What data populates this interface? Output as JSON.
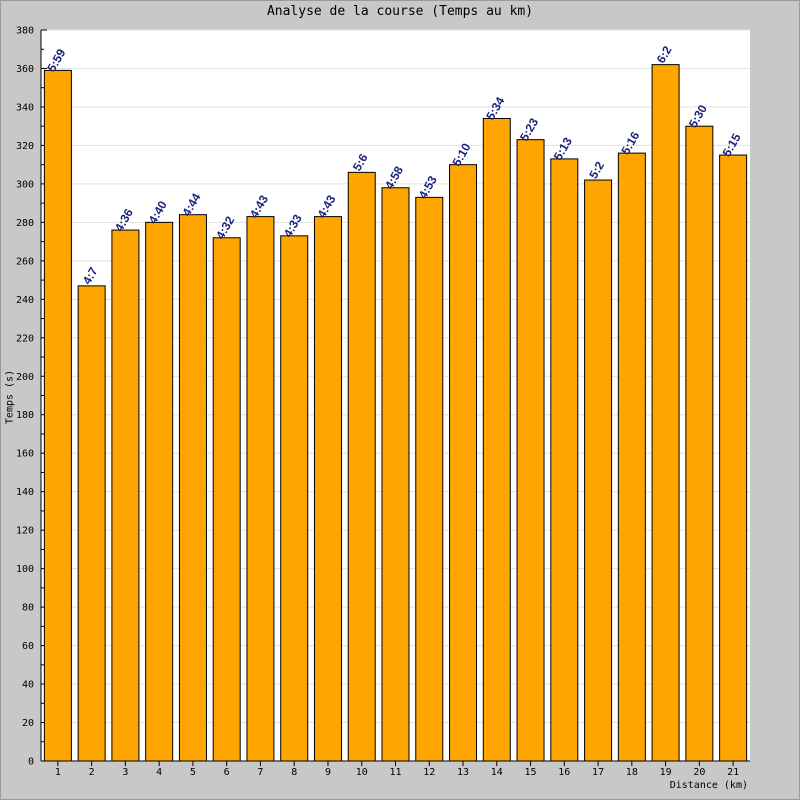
{
  "chart_data": {
    "type": "bar",
    "title": "Analyse de la course (Temps au km)",
    "xlabel": "Distance (km)",
    "ylabel": "Temps (s)",
    "categories": [
      "1",
      "2",
      "3",
      "4",
      "5",
      "6",
      "7",
      "8",
      "9",
      "10",
      "11",
      "12",
      "13",
      "14",
      "15",
      "16",
      "17",
      "18",
      "19",
      "20",
      "21"
    ],
    "values": [
      359,
      247,
      276,
      280,
      284,
      272,
      283,
      273,
      283,
      306,
      298,
      293,
      310,
      334,
      323,
      313,
      302,
      316,
      362,
      330,
      315
    ],
    "data_labels": [
      "5:59",
      "4:7",
      "4:36",
      "4:40",
      "4:44",
      "4:32",
      "4:43",
      "4:33",
      "4:43",
      "5:6",
      "4:58",
      "4:53",
      "5:10",
      "5:34",
      "5:23",
      "5:13",
      "5:2",
      "5:16",
      "6:2",
      "5:30",
      "5:15"
    ],
    "ylim": [
      0,
      380
    ],
    "y_ticks": [
      0,
      20,
      40,
      60,
      80,
      100,
      120,
      140,
      160,
      180,
      200,
      220,
      240,
      260,
      280,
      300,
      320,
      340,
      360,
      380
    ],
    "grid": true,
    "colors": {
      "bar": "#ffa500",
      "bar_border": "#000000",
      "label": "#1a237e",
      "plot_bg": "#ffffff",
      "page_bg": "#c8c8c8",
      "grid": "#e0e0e0"
    }
  }
}
